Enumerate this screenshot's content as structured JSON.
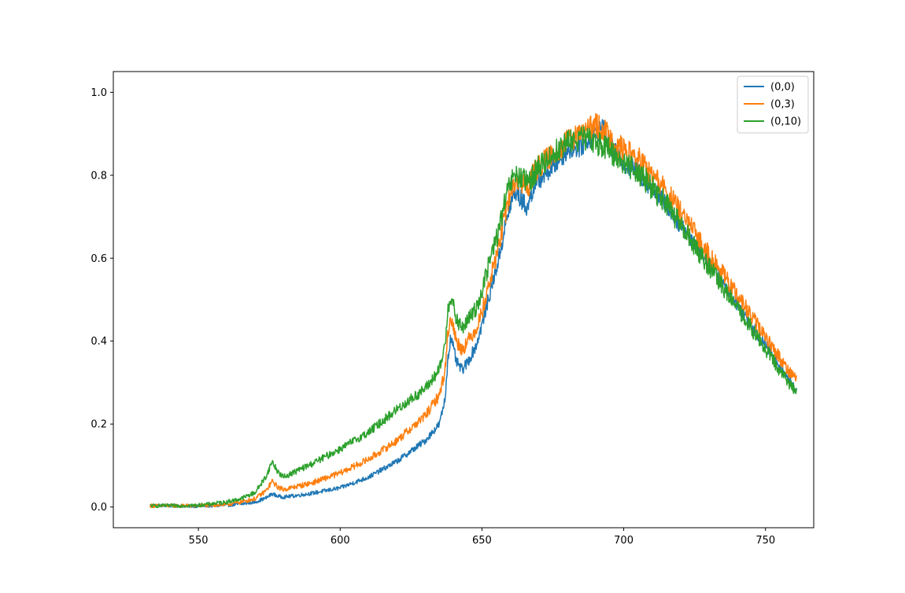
{
  "chart_data": {
    "type": "line",
    "title": "",
    "xlabel": "",
    "ylabel": "",
    "xlim": [
      520,
      767
    ],
    "ylim": [
      -0.05,
      1.05
    ],
    "xticks": [
      550,
      600,
      650,
      700,
      750
    ],
    "yticks": [
      0.0,
      0.2,
      0.4,
      0.6,
      0.8,
      1.0
    ],
    "xtick_labels": [
      "550",
      "600",
      "650",
      "700",
      "750"
    ],
    "ytick_labels": [
      "0.0",
      "0.2",
      "0.4",
      "0.6",
      "0.8",
      "1.0"
    ],
    "grid": false,
    "legend_position": "top-right",
    "series": [
      {
        "name": "(0,0)",
        "color": "#1f77b4",
        "x": [
          533,
          540,
          550,
          560,
          565,
          570,
          574,
          576,
          578,
          580,
          585,
          590,
          600,
          610,
          620,
          630,
          635,
          637,
          638,
          639,
          641,
          643,
          645,
          648,
          650,
          653,
          656,
          658,
          660,
          662,
          664,
          666,
          668,
          670,
          675,
          680,
          685,
          690,
          693,
          695,
          700,
          705,
          710,
          715,
          720,
          725,
          730,
          735,
          740,
          745,
          750,
          755,
          758,
          761
        ],
        "y": [
          0.004,
          0.003,
          0.002,
          0.004,
          0.007,
          0.012,
          0.022,
          0.032,
          0.026,
          0.024,
          0.028,
          0.033,
          0.046,
          0.072,
          0.11,
          0.16,
          0.2,
          0.26,
          0.36,
          0.41,
          0.35,
          0.33,
          0.35,
          0.39,
          0.44,
          0.52,
          0.6,
          0.67,
          0.73,
          0.76,
          0.74,
          0.72,
          0.77,
          0.79,
          0.82,
          0.86,
          0.87,
          0.9,
          0.92,
          0.87,
          0.83,
          0.81,
          0.77,
          0.73,
          0.68,
          0.64,
          0.59,
          0.54,
          0.49,
          0.44,
          0.39,
          0.34,
          0.31,
          0.28
        ],
        "noise": 0.025
      },
      {
        "name": "(0,3)",
        "color": "#ff7f0e",
        "x": [
          533,
          540,
          550,
          560,
          565,
          570,
          574,
          576,
          578,
          580,
          585,
          590,
          600,
          610,
          620,
          630,
          635,
          637,
          638,
          639,
          641,
          643,
          645,
          648,
          650,
          653,
          656,
          658,
          660,
          662,
          664,
          666,
          668,
          670,
          675,
          680,
          685,
          690,
          693,
          695,
          700,
          705,
          710,
          715,
          720,
          725,
          730,
          735,
          740,
          745,
          750,
          755,
          758,
          761
        ],
        "y": [
          0.003,
          0.003,
          0.003,
          0.006,
          0.012,
          0.02,
          0.04,
          0.062,
          0.048,
          0.042,
          0.05,
          0.058,
          0.082,
          0.115,
          0.16,
          0.22,
          0.27,
          0.33,
          0.42,
          0.46,
          0.4,
          0.38,
          0.4,
          0.43,
          0.47,
          0.55,
          0.63,
          0.7,
          0.76,
          0.79,
          0.78,
          0.77,
          0.8,
          0.82,
          0.85,
          0.88,
          0.9,
          0.92,
          0.91,
          0.89,
          0.86,
          0.84,
          0.8,
          0.76,
          0.71,
          0.66,
          0.61,
          0.56,
          0.51,
          0.46,
          0.41,
          0.36,
          0.33,
          0.31
        ],
        "noise": 0.03
      },
      {
        "name": "(0,10)",
        "color": "#2ca02c",
        "x": [
          533,
          540,
          550,
          560,
          565,
          570,
          574,
          576,
          578,
          580,
          585,
          590,
          600,
          610,
          620,
          630,
          635,
          637,
          638,
          639,
          641,
          643,
          645,
          648,
          650,
          653,
          656,
          658,
          660,
          662,
          664,
          666,
          668,
          670,
          675,
          680,
          685,
          690,
          693,
          695,
          700,
          705,
          710,
          715,
          720,
          725,
          730,
          735,
          740,
          745,
          750,
          755,
          758,
          761
        ],
        "y": [
          0.003,
          0.003,
          0.004,
          0.012,
          0.02,
          0.035,
          0.075,
          0.11,
          0.085,
          0.072,
          0.088,
          0.104,
          0.14,
          0.18,
          0.235,
          0.285,
          0.33,
          0.39,
          0.48,
          0.51,
          0.45,
          0.43,
          0.45,
          0.48,
          0.52,
          0.6,
          0.67,
          0.73,
          0.78,
          0.8,
          0.79,
          0.78,
          0.8,
          0.82,
          0.85,
          0.88,
          0.89,
          0.88,
          0.87,
          0.86,
          0.83,
          0.81,
          0.77,
          0.73,
          0.68,
          0.63,
          0.58,
          0.53,
          0.48,
          0.43,
          0.38,
          0.33,
          0.3,
          0.28
        ],
        "noise": 0.03
      }
    ]
  }
}
